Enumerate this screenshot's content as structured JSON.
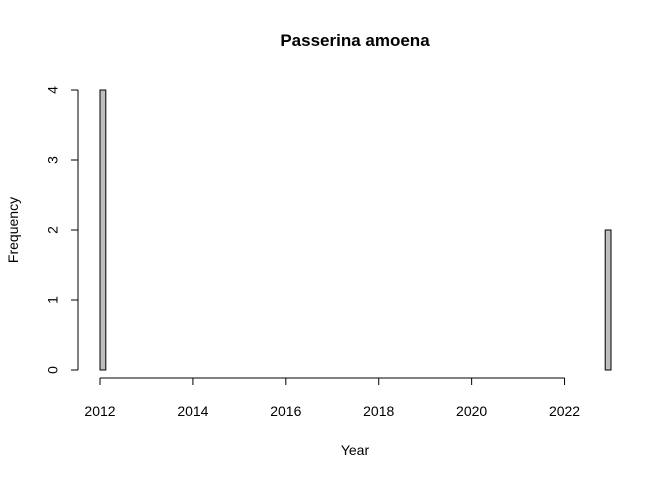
{
  "chart_data": {
    "type": "bar",
    "title": "Passerina amoena",
    "xlabel": "Year",
    "ylabel": "Frequency",
    "xlim": [
      2012,
      2023
    ],
    "ylim": [
      0,
      4
    ],
    "x_ticks": [
      2012,
      2014,
      2016,
      2018,
      2020,
      2022
    ],
    "y_ticks": [
      0,
      1,
      2,
      3,
      4
    ],
    "bin_width": 0.125,
    "bins": [
      {
        "start": 2012.0,
        "end": 2012.125,
        "count": 4
      },
      {
        "start": 2022.875,
        "end": 2023.0,
        "count": 2
      }
    ],
    "bar_color": "#bebebe"
  }
}
